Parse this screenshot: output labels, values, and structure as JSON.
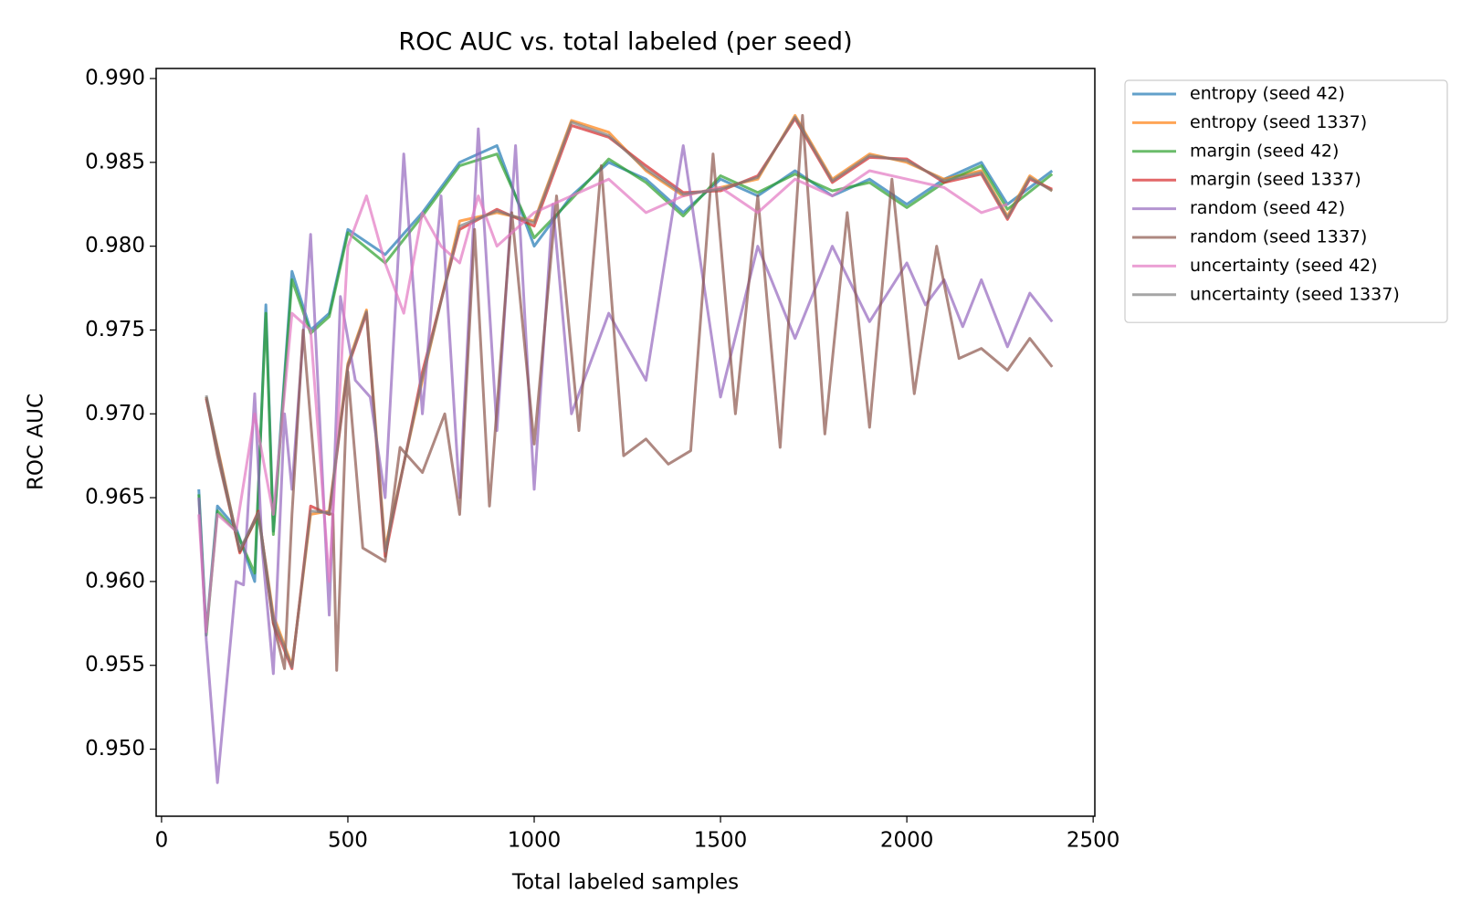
{
  "chart_data": {
    "type": "line",
    "title": "ROC AUC vs. total labeled (per seed)",
    "x_label": "Total labeled samples",
    "y_label": "ROC AUC",
    "xlim": [
      -14.5,
      2504.5
    ],
    "ylim": [
      0.946,
      0.9906
    ],
    "xticks": [
      0,
      500,
      1000,
      1500,
      2000,
      2500
    ],
    "yticks": [
      {
        "value": 0.95,
        "label": "0.950"
      },
      0.955,
      {
        "value": 0.96,
        "label": "0.960"
      },
      0.965,
      {
        "value": 0.97,
        "label": "0.970"
      },
      0.975,
      {
        "value": 0.98,
        "label": "0.980"
      },
      0.985,
      {
        "value": 0.99,
        "label": "0.990"
      }
    ],
    "grid": false,
    "legend": "outside-upper-right",
    "alpha": 0.7,
    "series": [
      {
        "name": "entropy (seed 42)",
        "color": "#1f77b4",
        "x": [
          100,
          120,
          150,
          200,
          250,
          280,
          300,
          350,
          400,
          450,
          500,
          600,
          700,
          800,
          900,
          1000,
          1100,
          1200,
          1300,
          1400,
          1500,
          1600,
          1700,
          1800,
          1900,
          2000,
          2100,
          2200,
          2270,
          2390
        ],
        "values": [
          0.9655,
          0.957,
          0.9645,
          0.9632,
          0.96,
          0.9765,
          0.963,
          0.9785,
          0.975,
          0.976,
          0.981,
          0.9795,
          0.982,
          0.985,
          0.986,
          0.98,
          0.983,
          0.985,
          0.984,
          0.982,
          0.984,
          0.983,
          0.9845,
          0.983,
          0.984,
          0.9825,
          0.984,
          0.985,
          0.9825,
          0.9845
        ]
      },
      {
        "name": "entropy (seed 1337)",
        "color": "#ff7f0e",
        "x": [
          120,
          160,
          210,
          260,
          300,
          350,
          400,
          450,
          500,
          550,
          600,
          700,
          800,
          900,
          1000,
          1100,
          1200,
          1300,
          1400,
          1500,
          1600,
          1700,
          1800,
          1900,
          2000,
          2100,
          2200,
          2270,
          2330,
          2390
        ],
        "values": [
          0.971,
          0.967,
          0.9618,
          0.964,
          0.958,
          0.955,
          0.964,
          0.9642,
          0.973,
          0.9762,
          0.962,
          0.972,
          0.9815,
          0.982,
          0.9815,
          0.9875,
          0.9868,
          0.9845,
          0.983,
          0.9835,
          0.984,
          0.9878,
          0.984,
          0.9855,
          0.985,
          0.984,
          0.9845,
          0.9818,
          0.9842,
          0.9833
        ]
      },
      {
        "name": "margin (seed 42)",
        "color": "#2ca02c",
        "x": [
          100,
          120,
          150,
          200,
          250,
          280,
          300,
          350,
          400,
          450,
          500,
          600,
          700,
          800,
          900,
          1000,
          1100,
          1200,
          1300,
          1400,
          1500,
          1600,
          1700,
          1800,
          1900,
          2000,
          2100,
          2200,
          2270,
          2390
        ],
        "values": [
          0.9652,
          0.9568,
          0.9642,
          0.963,
          0.9605,
          0.976,
          0.9628,
          0.978,
          0.9748,
          0.9758,
          0.9808,
          0.979,
          0.9818,
          0.9848,
          0.9855,
          0.9805,
          0.9828,
          0.9852,
          0.9838,
          0.9818,
          0.9842,
          0.9832,
          0.9843,
          0.9833,
          0.9838,
          0.9823,
          0.9838,
          0.9848,
          0.9822,
          0.9843
        ]
      },
      {
        "name": "margin (seed 1337)",
        "color": "#d62728",
        "x": [
          120,
          160,
          210,
          260,
          300,
          350,
          400,
          450,
          500,
          550,
          600,
          700,
          800,
          900,
          1000,
          1100,
          1200,
          1300,
          1400,
          1500,
          1600,
          1700,
          1800,
          1900,
          2000,
          2100,
          2200,
          2270,
          2330,
          2390
        ],
        "values": [
          0.9709,
          0.9668,
          0.9617,
          0.9642,
          0.9575,
          0.9548,
          0.9645,
          0.964,
          0.9728,
          0.976,
          0.9615,
          0.9725,
          0.981,
          0.9822,
          0.9812,
          0.9872,
          0.9865,
          0.9848,
          0.9832,
          0.9833,
          0.9842,
          0.9876,
          0.9838,
          0.9853,
          0.9852,
          0.9838,
          0.9843,
          0.9816,
          0.984,
          0.9834
        ]
      },
      {
        "name": "random (seed 42)",
        "color": "#9467bd",
        "x": [
          100,
          120,
          150,
          200,
          220,
          250,
          270,
          300,
          330,
          350,
          400,
          450,
          480,
          520,
          560,
          600,
          650,
          700,
          750,
          800,
          850,
          900,
          950,
          1000,
          1050,
          1100,
          1200,
          1300,
          1400,
          1500,
          1600,
          1700,
          1800,
          1900,
          2000,
          2050,
          2100,
          2150,
          2200,
          2270,
          2330,
          2390
        ],
        "values": [
          0.965,
          0.9565,
          0.948,
          0.96,
          0.9598,
          0.9712,
          0.962,
          0.9545,
          0.97,
          0.9655,
          0.9807,
          0.958,
          0.977,
          0.972,
          0.971,
          0.965,
          0.9855,
          0.97,
          0.983,
          0.965,
          0.987,
          0.969,
          0.986,
          0.9655,
          0.9825,
          0.97,
          0.976,
          0.972,
          0.986,
          0.971,
          0.98,
          0.9745,
          0.98,
          0.9755,
          0.979,
          0.9765,
          0.978,
          0.9752,
          0.978,
          0.974,
          0.9772,
          0.9755
        ]
      },
      {
        "name": "random (seed 1337)",
        "color": "#8c564b",
        "x": [
          120,
          150,
          210,
          260,
          300,
          330,
          350,
          380,
          420,
          460,
          470,
          500,
          540,
          600,
          640,
          700,
          760,
          800,
          840,
          880,
          940,
          1000,
          1060,
          1120,
          1180,
          1240,
          1300,
          1360,
          1420,
          1480,
          1540,
          1600,
          1660,
          1720,
          1780,
          1840,
          1900,
          1960,
          2020,
          2080,
          2140,
          2200,
          2270,
          2330,
          2390
        ],
        "values": [
          0.971,
          0.9675,
          0.9618,
          0.964,
          0.9575,
          0.9548,
          0.964,
          0.975,
          0.9642,
          0.964,
          0.9547,
          0.9725,
          0.962,
          0.9612,
          0.968,
          0.9665,
          0.97,
          0.964,
          0.981,
          0.9645,
          0.982,
          0.9682,
          0.983,
          0.969,
          0.9848,
          0.9675,
          0.9685,
          0.967,
          0.9678,
          0.9855,
          0.97,
          0.983,
          0.968,
          0.9878,
          0.9688,
          0.982,
          0.9692,
          0.984,
          0.9712,
          0.98,
          0.9733,
          0.9739,
          0.9726,
          0.9745,
          0.9728
        ]
      },
      {
        "name": "uncertainty (seed 42)",
        "color": "#e377c2",
        "x": [
          100,
          120,
          150,
          200,
          250,
          300,
          350,
          400,
          450,
          500,
          550,
          600,
          650,
          700,
          750,
          800,
          850,
          900,
          1000,
          1100,
          1200,
          1300,
          1400,
          1500,
          1600,
          1700,
          1800,
          1900,
          2000,
          2100,
          2200,
          2270
        ],
        "values": [
          0.964,
          0.957,
          0.964,
          0.963,
          0.97,
          0.964,
          0.976,
          0.975,
          0.96,
          0.98,
          0.983,
          0.979,
          0.976,
          0.982,
          0.98,
          0.979,
          0.983,
          0.98,
          0.982,
          0.983,
          0.984,
          0.982,
          0.983,
          0.9835,
          0.982,
          0.984,
          0.983,
          0.9845,
          0.984,
          0.9835,
          0.982,
          0.9825
        ]
      },
      {
        "name": "uncertainty (seed 1337)",
        "color": "#7f7f7f",
        "x": [
          120,
          160,
          210,
          260,
          300,
          350,
          400,
          450,
          500,
          550,
          600,
          700,
          800,
          900,
          1000,
          1100,
          1200,
          1300,
          1400,
          1500,
          1600,
          1700,
          1800,
          1900,
          2000,
          2100,
          2200,
          2270,
          2330,
          2390
        ],
        "values": [
          0.9711,
          0.9669,
          0.9619,
          0.9641,
          0.9578,
          0.9549,
          0.9642,
          0.9641,
          0.9729,
          0.9761,
          0.9618,
          0.9722,
          0.9812,
          0.9821,
          0.9814,
          0.9874,
          0.9866,
          0.9846,
          0.9831,
          0.9834,
          0.9841,
          0.9877,
          0.9839,
          0.9854,
          0.9851,
          0.9839,
          0.9844,
          0.9817,
          0.9841,
          0.9833
        ]
      }
    ]
  }
}
